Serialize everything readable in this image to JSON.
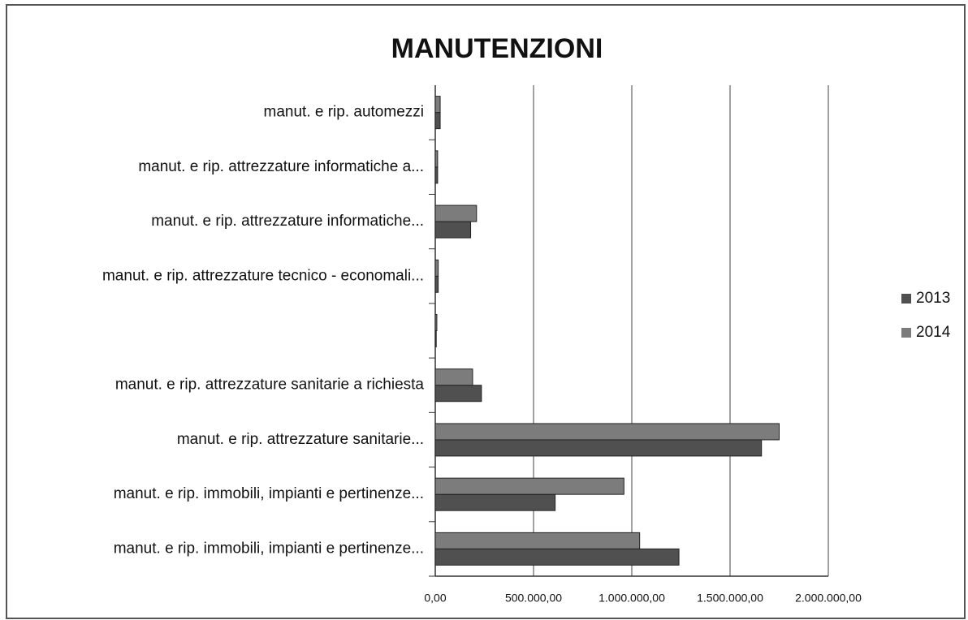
{
  "chart_data": {
    "type": "bar",
    "orientation": "horizontal",
    "title": "MANUTENZIONI",
    "categories": [
      "manut. e rip. automezzi",
      "manut. e rip. attrezzature informatiche a...",
      "manut. e rip. attrezzature informatiche...",
      "manut. e rip. attrezzature tecnico - economali...",
      null,
      "manut. e rip. attrezzature sanitarie a richiesta",
      "manut. e rip. attrezzature sanitarie...",
      "manut. e rip. immobili, impianti e pertinenze...",
      "manut. e rip. immobili, impianti e pertinenze..."
    ],
    "series": [
      {
        "name": "2013",
        "color": "#505050",
        "values": [
          25000,
          12000,
          180000,
          15000,
          5000,
          235000,
          1660000,
          610000,
          1240000
        ]
      },
      {
        "name": "2014",
        "color": "#7c7c7c",
        "values": [
          25000,
          12000,
          210000,
          15000,
          8000,
          190000,
          1750000,
          960000,
          1040000
        ]
      }
    ],
    "xlim": [
      0,
      2000000
    ],
    "xticks": [
      {
        "value": 0,
        "label": "0,00"
      },
      {
        "value": 500000,
        "label": "500.000,00"
      },
      {
        "value": 1000000,
        "label": "1.000.000,00"
      },
      {
        "value": 1500000,
        "label": "1.500.000,00"
      },
      {
        "value": 2000000,
        "label": "2.000.000,00"
      }
    ],
    "grid": true,
    "legend": "right"
  }
}
